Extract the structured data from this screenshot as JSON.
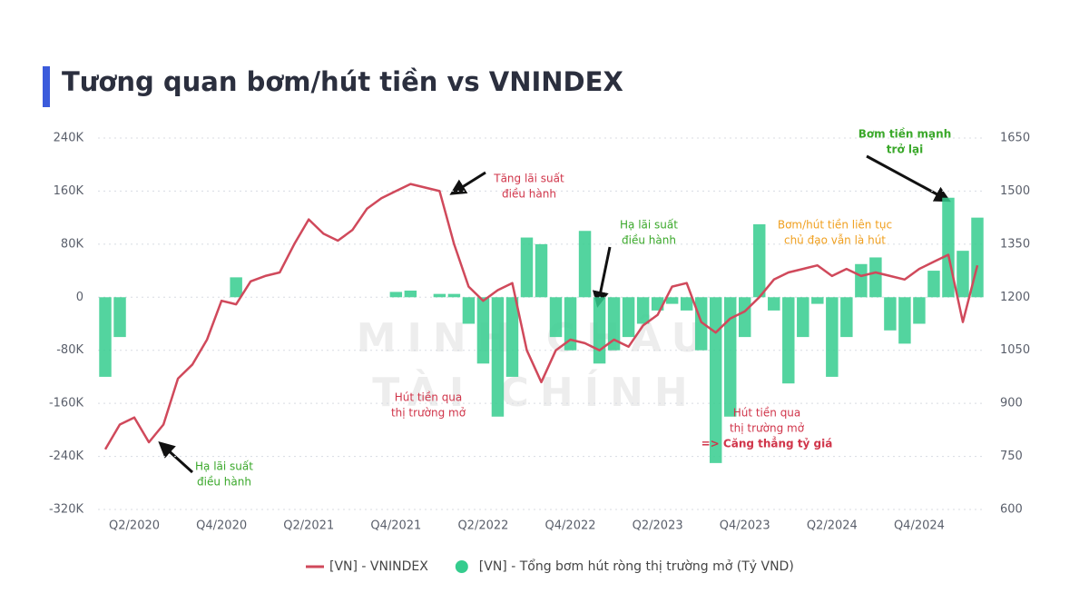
{
  "chart_data": {
    "type": "combo",
    "title": "Tương quan bơm/hút tiền vs VNINDEX",
    "categories": [
      null,
      null,
      "Q2/2020",
      null,
      null,
      null,
      null,
      null,
      "Q4/2020",
      null,
      null,
      null,
      null,
      null,
      "Q2/2021",
      null,
      null,
      null,
      null,
      null,
      "Q4/2021",
      null,
      null,
      null,
      null,
      null,
      "Q2/2022",
      null,
      null,
      null,
      null,
      null,
      "Q4/2022",
      null,
      null,
      null,
      null,
      null,
      "Q2/2023",
      null,
      null,
      null,
      null,
      null,
      "Q4/2023",
      null,
      null,
      null,
      null,
      null,
      "Q2/2024",
      null,
      null,
      null,
      null,
      null,
      "Q4/2024",
      null,
      null,
      null,
      null
    ],
    "series": [
      {
        "name": "[VN] - VNINDEX",
        "type": "line",
        "axis": "y2",
        "color": "#d0495b",
        "values": [
          770,
          840,
          860,
          790,
          840,
          970,
          1010,
          1080,
          1190,
          1180,
          1245,
          1260,
          1270,
          1350,
          1420,
          1380,
          1360,
          1390,
          1450,
          1480,
          1500,
          1520,
          1510,
          1500,
          1350,
          1230,
          1190,
          1220,
          1240,
          1050,
          960,
          1050,
          1080,
          1070,
          1050,
          1080,
          1060,
          1120,
          1150,
          1230,
          1240,
          1130,
          1100,
          1140,
          1160,
          1200,
          1250,
          1270,
          1280,
          1290,
          1260,
          1280,
          1260,
          1270,
          1260,
          1250,
          1280,
          1300,
          1320,
          1130,
          1290
        ]
      },
      {
        "name": "[VN] - Tổng bơm hút ròng thị trường mở (Tỷ VND)",
        "type": "bar",
        "axis": "y",
        "color": "#35cc8e",
        "values": [
          -120000,
          -60000,
          0,
          0,
          0,
          0,
          0,
          0,
          0,
          30000,
          0,
          0,
          0,
          0,
          0,
          0,
          0,
          0,
          0,
          0,
          8000,
          10000,
          0,
          5000,
          5000,
          -40000,
          -100000,
          -180000,
          -120000,
          90000,
          80000,
          -60000,
          -80000,
          100000,
          -100000,
          -80000,
          -60000,
          -40000,
          -20000,
          -10000,
          -20000,
          -80000,
          -250000,
          -180000,
          -60000,
          110000,
          -20000,
          -130000,
          -60000,
          -10000,
          -120000,
          -60000,
          50000,
          60000,
          -50000,
          -70000,
          -40000,
          40000,
          150000,
          70000,
          120000
        ]
      }
    ],
    "ylim": [
      -320000,
      240000
    ],
    "yticks": [
      {
        "value": -320000,
        "label": "-320K"
      },
      {
        "value": -240000,
        "label": "-240K"
      },
      {
        "value": -160000,
        "label": "-160K"
      },
      {
        "value": -80000,
        "label": "-80K"
      },
      0,
      {
        "value": 80000,
        "label": "80K"
      },
      {
        "value": 160000,
        "label": "160K"
      },
      {
        "value": 240000,
        "label": "240K"
      }
    ],
    "y2lim": [
      600,
      1650
    ],
    "y2ticks": [
      600,
      750,
      900,
      1050,
      1200,
      1350,
      1500,
      1650
    ],
    "grid": true,
    "legend": "bottom",
    "annotations": [
      {
        "lines": [
          "Tăng lãi suất",
          "điều hành"
        ],
        "color": "#d0354a"
      },
      {
        "lines": [
          "Hạ lãi suất",
          "điều hành"
        ],
        "color": "#3aa82a"
      },
      {
        "lines": [
          "Bơm tiền mạnh",
          "trở lại"
        ],
        "color": "#3aa82a"
      },
      {
        "lines": [
          "Bơm/hút tiền liên tục",
          "chủ đạo vẫn là hút"
        ],
        "color": "#f0a020"
      },
      {
        "lines": [
          "Hút tiền qua",
          "thị trường mở"
        ],
        "color": "#d0354a"
      },
      {
        "lines": [
          "Hút tiền qua",
          "thị trường mở",
          "=> Căng thẳng tỷ giá"
        ],
        "color": "#d0354a"
      },
      {
        "lines": [
          "Hạ lãi suất",
          "điều hành"
        ],
        "color": "#3aa82a"
      }
    ],
    "watermark": [
      "MINH CHÂU",
      "TÀI CHÍNH"
    ]
  }
}
